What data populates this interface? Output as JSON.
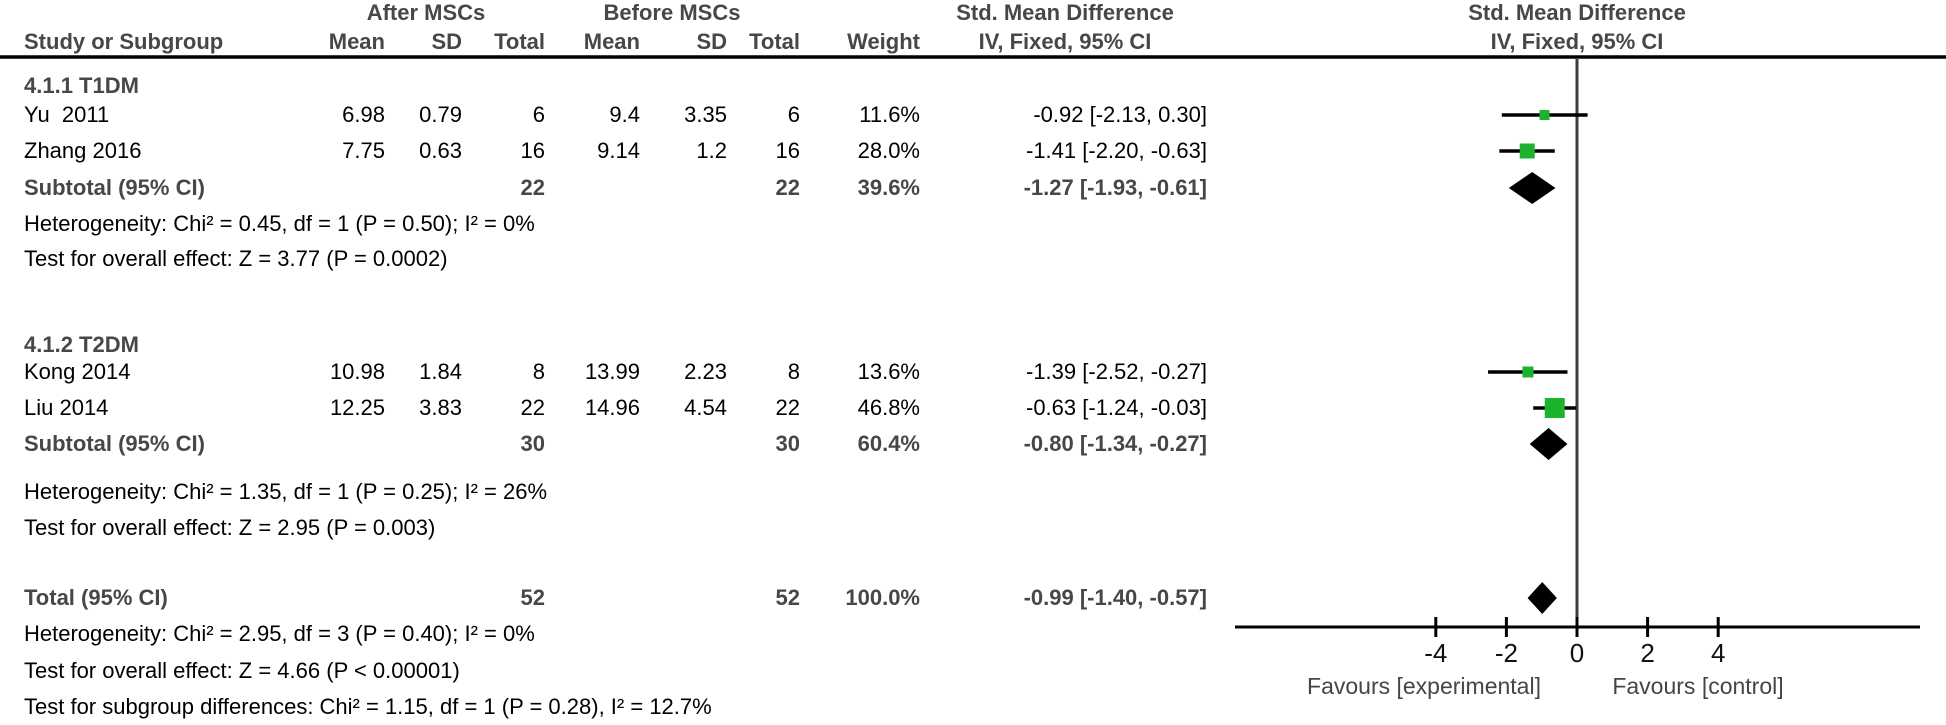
{
  "forest": {
    "header": {
      "group_after": "After MSCs",
      "group_before": "Before MSCs",
      "smd": "Std. Mean Difference",
      "method": "IV, Fixed, 95% CI",
      "study": "Study or Subgroup",
      "mean": "Mean",
      "sd": "SD",
      "total": "Total",
      "weight": "Weight"
    },
    "sections": [
      {
        "title": "4.1.1 T1DM",
        "studies": [
          {
            "name": "Yu  2011",
            "mean1": "6.98",
            "sd1": "0.79",
            "n1": "6",
            "mean2": "9.4",
            "sd2": "3.35",
            "n2": "6",
            "weight": "11.6%",
            "est": -0.92,
            "lo": -2.13,
            "hi": 0.3,
            "ci_text": "-0.92 [-2.13, 0.30]"
          },
          {
            "name": "Zhang 2016",
            "mean1": "7.75",
            "sd1": "0.63",
            "n1": "16",
            "mean2": "9.14",
            "sd2": "1.2",
            "n2": "16",
            "weight": "28.0%",
            "est": -1.41,
            "lo": -2.2,
            "hi": -0.63,
            "ci_text": "-1.41 [-2.20, -0.63]"
          }
        ],
        "subtotal": {
          "label": "Subtotal (95% CI)",
          "n1": "22",
          "n2": "22",
          "weight": "39.6%",
          "est": -1.27,
          "lo": -1.93,
          "hi": -0.61,
          "ci_text": "-1.27 [-1.93, -0.61]"
        },
        "heterogeneity": "Heterogeneity: Chi² = 0.45, df = 1 (P = 0.50); I² = 0%",
        "overall_effect": "Test for overall effect: Z = 3.77 (P = 0.0002)"
      },
      {
        "title": "4.1.2 T2DM",
        "studies": [
          {
            "name": "Kong 2014",
            "mean1": "10.98",
            "sd1": "1.84",
            "n1": "8",
            "mean2": "13.99",
            "sd2": "2.23",
            "n2": "8",
            "weight": "13.6%",
            "est": -1.39,
            "lo": -2.52,
            "hi": -0.27,
            "ci_text": "-1.39 [-2.52, -0.27]"
          },
          {
            "name": "Liu 2014",
            "mean1": "12.25",
            "sd1": "3.83",
            "n1": "22",
            "mean2": "14.96",
            "sd2": "4.54",
            "n2": "22",
            "weight": "46.8%",
            "est": -0.63,
            "lo": -1.24,
            "hi": -0.03,
            "ci_text": "-0.63 [-1.24, -0.03]"
          }
        ],
        "subtotal": {
          "label": "Subtotal (95% CI)",
          "n1": "30",
          "n2": "30",
          "weight": "60.4%",
          "est": -0.8,
          "lo": -1.34,
          "hi": -0.27,
          "ci_text": "-0.80 [-1.34, -0.27]"
        },
        "heterogeneity": "Heterogeneity: Chi² = 1.35, df = 1 (P = 0.25); I² = 26%",
        "overall_effect": "Test for overall effect: Z = 2.95 (P = 0.003)"
      }
    ],
    "total": {
      "label": "Total (95% CI)",
      "n1": "52",
      "n2": "52",
      "weight": "100.0%",
      "est": -0.99,
      "lo": -1.4,
      "hi": -0.57,
      "ci_text": "-0.99 [-1.40, -0.57]"
    },
    "footer_lines": [
      "Heterogeneity: Chi² = 2.95, df = 3 (P = 0.40); I² = 0%",
      "Test for overall effect: Z = 4.66 (P < 0.00001)",
      "Test for subgroup differences: Chi² = 1.15, df = 1 (P = 0.28), I² = 12.7%"
    ],
    "axis": {
      "ticks": [
        -4,
        -2,
        0,
        2,
        4
      ],
      "favours_left": "Favours [experimental]",
      "favours_right": "Favours [control]"
    },
    "colors": {
      "square": "#1db42d",
      "diamond": "#000000",
      "line": "#000000",
      "zero_line": "#3d3d3d",
      "bold_text": "#474747"
    }
  },
  "chart_data": {
    "type": "scatter",
    "variant": "forest_plot",
    "title": "Std. Mean Difference",
    "method_label": "IV, Fixed, 95% CI",
    "xlabel_left": "Favours [experimental]",
    "xlabel_right": "Favours [control]",
    "xlim": [
      -9.7,
      9.7
    ],
    "xticks": [
      -4,
      -2,
      0,
      2,
      4
    ],
    "groups": [
      {
        "name": "4.1.1 T1DM",
        "points": [
          {
            "study": "Yu 2011",
            "after": {
              "mean": 6.98,
              "sd": 0.79,
              "n": 6
            },
            "before": {
              "mean": 9.4,
              "sd": 3.35,
              "n": 6
            },
            "weight_pct": 11.6,
            "smd": -0.92,
            "ci95": [
              -2.13,
              0.3
            ]
          },
          {
            "study": "Zhang 2016",
            "after": {
              "mean": 7.75,
              "sd": 0.63,
              "n": 16
            },
            "before": {
              "mean": 9.14,
              "sd": 1.2,
              "n": 16
            },
            "weight_pct": 28.0,
            "smd": -1.41,
            "ci95": [
              -2.2,
              -0.63
            ]
          }
        ],
        "subtotal": {
          "n_after": 22,
          "n_before": 22,
          "weight_pct": 39.6,
          "smd": -1.27,
          "ci95": [
            -1.93,
            -0.61
          ],
          "heterogeneity": "Chi² = 0.45, df = 1 (P = 0.50); I² = 0%",
          "overall_effect": "Z = 3.77 (P = 0.0002)"
        }
      },
      {
        "name": "4.1.2 T2DM",
        "points": [
          {
            "study": "Kong 2014",
            "after": {
              "mean": 10.98,
              "sd": 1.84,
              "n": 8
            },
            "before": {
              "mean": 13.99,
              "sd": 2.23,
              "n": 8
            },
            "weight_pct": 13.6,
            "smd": -1.39,
            "ci95": [
              -2.52,
              -0.27
            ]
          },
          {
            "study": "Liu 2014",
            "after": {
              "mean": 12.25,
              "sd": 3.83,
              "n": 22
            },
            "before": {
              "mean": 14.96,
              "sd": 4.54,
              "n": 22
            },
            "weight_pct": 46.8,
            "smd": -0.63,
            "ci95": [
              -1.24,
              -0.03
            ]
          }
        ],
        "subtotal": {
          "n_after": 30,
          "n_before": 30,
          "weight_pct": 60.4,
          "smd": -0.8,
          "ci95": [
            -1.34,
            -0.27
          ],
          "heterogeneity": "Chi² = 1.35, df = 1 (P = 0.25); I² = 26%",
          "overall_effect": "Z = 2.95 (P = 0.003)"
        }
      }
    ],
    "total": {
      "n_after": 52,
      "n_before": 52,
      "weight_pct": 100.0,
      "smd": -0.99,
      "ci95": [
        -1.4,
        -0.57
      ],
      "heterogeneity": "Chi² = 2.95, df = 3 (P = 0.40); I² = 0%",
      "overall_effect": "Z = 4.66 (P < 0.00001)",
      "subgroup_differences": "Chi² = 1.15, df = 1 (P = 0.28), I² = 12.7%"
    }
  }
}
